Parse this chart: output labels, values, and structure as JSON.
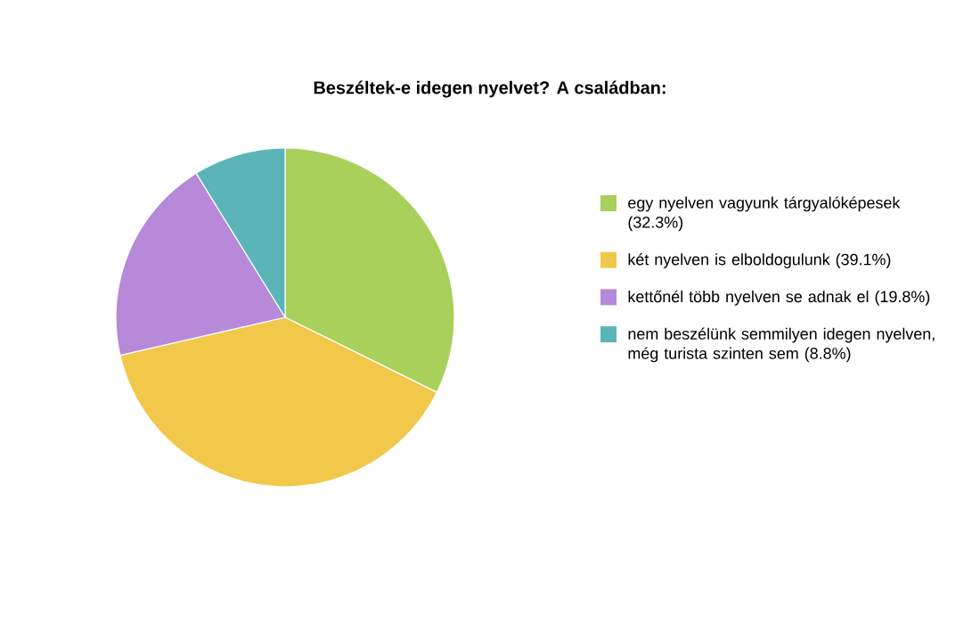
{
  "chart_data": {
    "type": "pie",
    "title": "Beszéltek-e idegen nyelvet? A családban:",
    "categories": [
      "egy nyelven vagyunk tárgyalóképesek (32.3%)",
      "két nyelven is elboldogulunk (39.1%)",
      "kettőnél több nyelven se adnak el (19.8%)",
      "nem beszélünk semmilyen idegen nyelven, még turista szinten sem (8.8%)"
    ],
    "values": [
      32.3,
      39.1,
      19.8,
      8.8
    ],
    "colors": [
      "#a9d05a",
      "#f2c84b",
      "#b68ad9",
      "#5bb5b8"
    ],
    "legend": "right"
  }
}
